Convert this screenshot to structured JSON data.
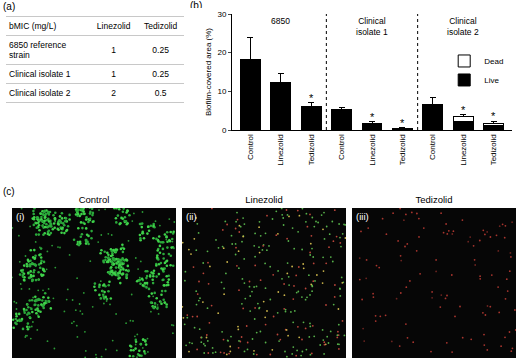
{
  "table": {
    "label": "(a)",
    "header": [
      "bMIC (mg/L)",
      "Linezolid",
      "Tedizolid"
    ],
    "rows": [
      [
        "6850 reference strain",
        1,
        0.25
      ],
      [
        "Clinical isolate 1",
        1,
        0.25
      ],
      [
        "Clinical isolate 2",
        2,
        0.5
      ]
    ]
  },
  "chart_data": {
    "label": "(b)",
    "type": "bar",
    "stacked": true,
    "y_label": "Biofilm-covered area (%)",
    "categories": [
      "Control",
      "Linezolid",
      "Tedizolid",
      "Control",
      "Linezolid",
      "Tedizolid",
      "Control",
      "Linezolid",
      "Tedizolid"
    ],
    "groups": [
      {
        "name": "6850",
        "size": 3
      },
      {
        "name": "Clinical isolate 1",
        "size": 3
      },
      {
        "name": "Clinical isolate 2",
        "size": 3
      }
    ],
    "series": [
      {
        "name": "Live",
        "color": "#000000",
        "values": [
          18,
          12,
          5.8,
          5,
          1.3,
          0.3,
          6.3,
          2.2,
          1.2
        ]
      },
      {
        "name": "Dead",
        "color": "#ffffff",
        "values": [
          0.3,
          0.2,
          0.2,
          0.2,
          0.3,
          0.2,
          0.3,
          1.2,
          0.6
        ]
      }
    ],
    "errors": [
      5.5,
      2.3,
      1,
      0.5,
      0.5,
      0.1,
      1.8,
      0.6,
      0.4
    ],
    "annotations": [
      {
        "x": 2,
        "text": "*"
      },
      {
        "x": 4,
        "text": "*"
      },
      {
        "x": 5,
        "text": "*"
      },
      {
        "x": 7,
        "text": "*"
      },
      {
        "x": 8,
        "text": "*"
      }
    ],
    "ylim": [
      0,
      30
    ],
    "yticks": [
      0,
      10,
      20,
      30
    ],
    "legend": "top right"
  },
  "images": {
    "label": "(c)",
    "panels": [
      {
        "numeral": "(i)",
        "title": "Control"
      },
      {
        "numeral": "(ii)",
        "title": "Linezolid"
      },
      {
        "numeral": "(iii)",
        "title": "Tedizolid"
      }
    ]
  }
}
